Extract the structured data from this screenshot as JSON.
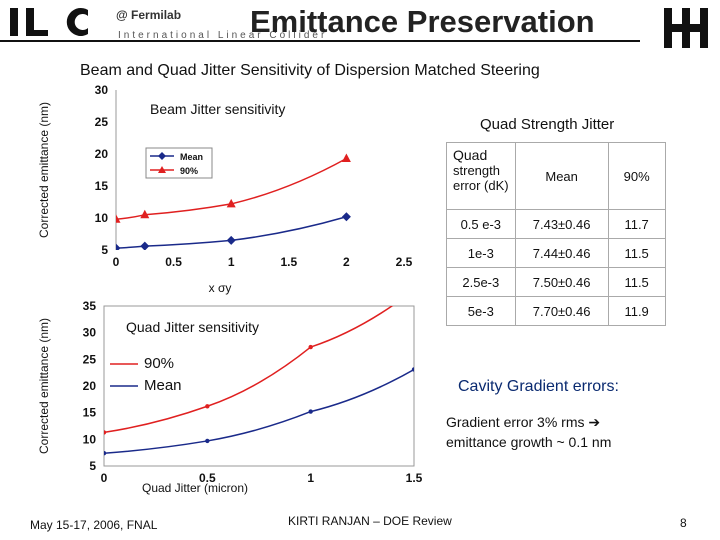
{
  "header": {
    "logo_text": "ILC",
    "logo_subtext": "International Linear Collider",
    "org": "@ Fermilab",
    "title": "Emittance Preservation",
    "subtitle": "Beam and Quad Jitter Sensitivity of Dispersion Matched Steering"
  },
  "table": {
    "title": "Quad Strength Jitter",
    "header": {
      "col1_line1": "Quad",
      "col1_line2": "strength",
      "col1_line3": "error (dK)",
      "col2": "Mean",
      "col3": "90%"
    },
    "rows": [
      {
        "err": "0.5 e-3",
        "mean": "7.43±0.46",
        "p90": "11.7"
      },
      {
        "err": "1e-3",
        "mean": "7.44±0.46",
        "p90": "11.5"
      },
      {
        "err": "2.5e-3",
        "mean": "7.50±0.46",
        "p90": "11.5"
      },
      {
        "err": "5e-3",
        "mean": "7.70±0.46",
        "p90": "11.9"
      }
    ]
  },
  "cavity": {
    "title": "Cavity Gradient errors:",
    "line1": "Gradient error 3% rms",
    "line2": "emittance growth ~ 0.1 nm"
  },
  "footer": {
    "date": "May 15-17, 2006, FNAL",
    "author": "KIRTI RANJAN – DOE Review",
    "page": "8"
  },
  "chart_data": [
    {
      "type": "line",
      "title": "Beam Jitter sensitivity",
      "xlabel": "x σy",
      "ylabel": "Corrected emittance (nm)",
      "xlim": [
        0,
        2.5
      ],
      "ylim": [
        5,
        30
      ],
      "xticks": [
        "0",
        "0.5",
        "1",
        "1.5",
        "2",
        "2.5"
      ],
      "yticks": [
        "5",
        "10",
        "15",
        "20",
        "25",
        "30"
      ],
      "legend": "top-left",
      "series": [
        {
          "name": "Mean",
          "color": "#1a2a8a",
          "marker": "diamond",
          "x": [
            0,
            0.25,
            1,
            2
          ],
          "y": [
            5.3,
            5.6,
            6.5,
            10.2
          ]
        },
        {
          "name": "90%",
          "color": "#e02020",
          "marker": "triangle",
          "x": [
            0,
            0.25,
            1,
            2
          ],
          "y": [
            9.8,
            10.5,
            12.2,
            19.3
          ]
        }
      ]
    },
    {
      "type": "line",
      "title": "Quad Jitter sensitivity",
      "xlabel": "Quad Jitter (micron)",
      "ylabel": "Corrected emittance (nm)",
      "xlim": [
        0,
        1.5
      ],
      "ylim": [
        5,
        35
      ],
      "xticks": [
        "0",
        "0.5",
        "1",
        "1.5"
      ],
      "yticks": [
        "5",
        "10",
        "15",
        "20",
        "25",
        "30",
        "35"
      ],
      "legend": "top-left",
      "series": [
        {
          "name": "90%",
          "color": "#e02020",
          "x": [
            0,
            0.5,
            1,
            1.5
          ],
          "y": [
            11.3,
            16.2,
            27.3,
            38
          ]
        },
        {
          "name": "Mean",
          "color": "#1a2a8a",
          "x": [
            0,
            0.5,
            1,
            1.5
          ],
          "y": [
            7.4,
            9.7,
            15.2,
            23.1
          ]
        }
      ]
    }
  ]
}
